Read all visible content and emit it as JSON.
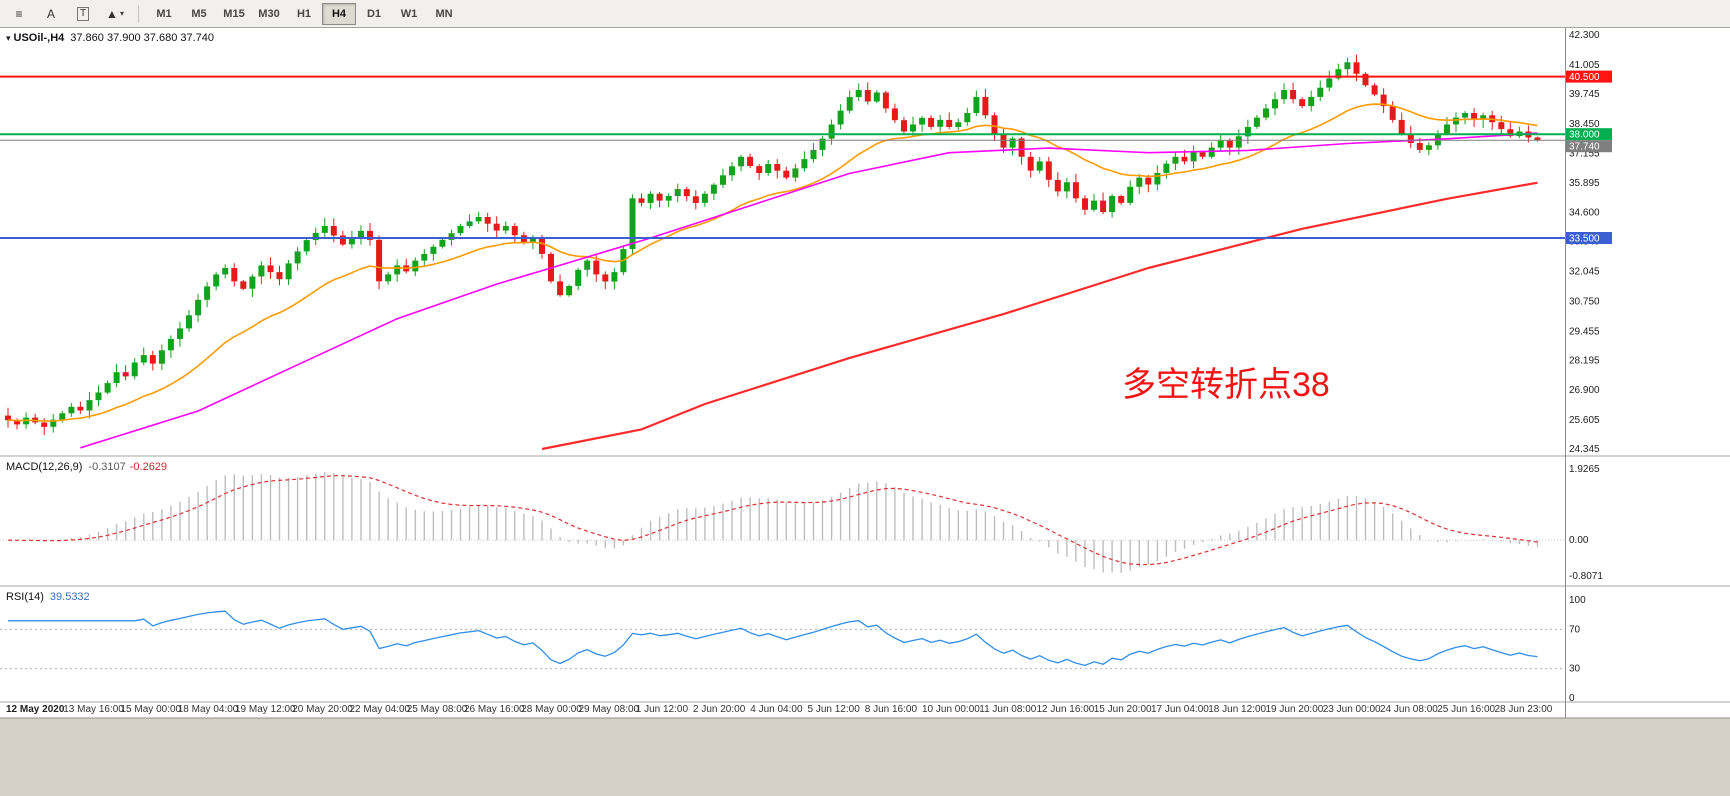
{
  "toolbar": {
    "tools": [
      {
        "id": "objects-list",
        "glyph": "≡"
      },
      {
        "id": "text-label",
        "glyph": "A"
      },
      {
        "id": "text",
        "glyph": "T"
      },
      {
        "id": "shapes",
        "glyph": "▲"
      }
    ],
    "dropdown_glyph": "▾",
    "timeframes": [
      "M1",
      "M5",
      "M15",
      "M30",
      "H1",
      "H4",
      "D1",
      "W1",
      "MN"
    ],
    "active_timeframe": "H4"
  },
  "chart": {
    "title": "USOil-,H4",
    "ohlc": "37.860 37.900 37.680 37.740",
    "annotation": {
      "text": "多空转折点38",
      "color": "#f21414"
    },
    "price_axis_labels": [
      "42.300",
      "41.005",
      "39.745",
      "38.450",
      "37.155",
      "35.895",
      "34.600",
      "33.340",
      "32.045",
      "30.750",
      "29.455",
      "28.195",
      "26.900",
      "25.605",
      "24.345"
    ],
    "hlines": [
      {
        "price": 40.5,
        "label": "40.500",
        "color": "#ff1414"
      },
      {
        "price": 38.0,
        "label": "38.000",
        "color": "#00b050"
      },
      {
        "price": 33.5,
        "label": "33.500",
        "color": "#3a5fd0"
      }
    ],
    "current_price": {
      "price": 37.74,
      "label": "37.740",
      "color": "#7f7f7f"
    },
    "time_axis": [
      "12 May 2020",
      "13 May 16:00",
      "15 May 00:00",
      "18 May 04:00",
      "19 May 12:00",
      "20 May 20:00",
      "22 May 04:00",
      "25 May 08:00",
      "26 May 16:00",
      "28 May 00:00",
      "29 May 08:00",
      "1 Jun 12:00",
      "2 Jun 20:00",
      "4 Jun 04:00",
      "5 Jun 12:00",
      "8 Jun 16:00",
      "10 Jun 00:00",
      "11 Jun 08:00",
      "12 Jun 16:00",
      "15 Jun 20:00",
      "17 Jun 04:00",
      "18 Jun 12:00",
      "19 Jun 20:00",
      "23 Jun 00:00",
      "24 Jun 08:00",
      "25 Jun 16:00",
      "28 Jun 23:00"
    ]
  },
  "chart_data": {
    "type": "candlestick",
    "symbol": "USOil",
    "timeframe": "H4",
    "title": "USOil-,H4",
    "ylim": [
      24.22,
      42.52
    ],
    "first_open": 25.8,
    "last_ohlc": [
      37.86,
      37.9,
      37.68,
      37.74
    ],
    "closes": [
      25.6,
      25.42,
      25.71,
      25.5,
      25.31,
      25.62,
      25.9,
      26.18,
      26.02,
      26.47,
      26.8,
      27.21,
      27.68,
      27.5,
      28.1,
      28.42,
      28.05,
      28.63,
      29.12,
      29.58,
      30.15,
      30.82,
      31.4,
      31.92,
      32.2,
      31.62,
      31.3,
      31.83,
      32.31,
      32.02,
      31.71,
      32.4,
      32.92,
      33.41,
      33.72,
      34.02,
      33.61,
      33.22,
      33.52,
      33.81,
      33.42,
      31.62,
      31.92,
      32.31,
      32.05,
      32.52,
      32.81,
      33.12,
      33.42,
      33.71,
      34.02,
      34.22,
      34.41,
      34.12,
      33.82,
      34.02,
      33.62,
      33.31,
      33.52,
      32.81,
      31.62,
      31.02,
      31.42,
      32.12,
      32.52,
      31.92,
      31.61,
      32.02,
      33.02,
      35.22,
      35.02,
      35.42,
      35.12,
      35.32,
      35.62,
      35.31,
      35.02,
      35.42,
      35.81,
      36.22,
      36.61,
      37.02,
      36.62,
      36.32,
      36.71,
      36.42,
      36.12,
      36.52,
      36.92,
      37.32,
      37.81,
      38.42,
      39.02,
      39.61,
      39.92,
      39.42,
      39.81,
      39.12,
      38.61,
      38.12,
      38.42,
      38.71,
      38.32,
      38.62,
      38.31,
      38.52,
      38.92,
      39.62,
      38.82,
      38.02,
      37.42,
      37.82,
      37.02,
      36.42,
      36.82,
      36.02,
      35.52,
      35.92,
      35.22,
      34.72,
      35.12,
      34.62,
      35.32,
      35.02,
      35.72,
      36.12,
      35.82,
      36.32,
      36.72,
      37.02,
      36.82,
      37.22,
      37.02,
      37.42,
      37.72,
      37.42,
      37.91,
      38.32,
      38.72,
      39.12,
      39.52,
      39.92,
      39.52,
      39.22,
      39.62,
      40.02,
      40.42,
      40.82,
      41.12,
      40.62,
      40.12,
      39.72,
      39.22,
      38.62,
      38.02,
      37.62,
      37.32,
      37.52,
      38.02,
      38.42,
      38.72,
      38.92,
      38.62,
      38.82,
      38.52,
      38.22,
      37.92,
      38.12,
      37.86,
      37.74
    ],
    "bull_color": "#12a31c",
    "bear_color": "#e51b1b",
    "overlays": {
      "ema_fast": {
        "period": 20,
        "color": "#ff9b00"
      },
      "ma_mid": {
        "color": "#ff00ff",
        "points": [
          [
            8,
            24.4
          ],
          [
            21,
            26.0
          ],
          [
            32,
            28.0
          ],
          [
            43,
            30.0
          ],
          [
            54,
            31.5
          ],
          [
            60,
            32.2
          ],
          [
            71,
            33.5
          ],
          [
            82,
            34.9
          ],
          [
            93,
            36.3
          ],
          [
            104,
            37.2
          ],
          [
            115,
            37.4
          ],
          [
            126,
            37.2
          ],
          [
            137,
            37.3
          ],
          [
            148,
            37.6
          ],
          [
            159,
            37.8
          ],
          [
            169,
            38.05
          ]
        ]
      },
      "ma_slow": {
        "color": "#ff2a2a",
        "points": [
          [
            59,
            24.35
          ],
          [
            70,
            25.2
          ],
          [
            77,
            26.3
          ],
          [
            93,
            28.3
          ],
          [
            110,
            30.2
          ],
          [
            126,
            32.2
          ],
          [
            143,
            33.9
          ],
          [
            159,
            35.2
          ],
          [
            169,
            35.9
          ]
        ]
      }
    }
  },
  "macd": {
    "name": "MACD(12,26,9)",
    "value_main": "-0.3107",
    "value_signal": "-0.2629",
    "params": {
      "fast": 12,
      "slow": 26,
      "signal": 9
    },
    "axis_labels": [
      "1.9265",
      "0.00",
      "-0.8071"
    ],
    "hist_color": "#bdbdbd",
    "signal_color": "#e03030"
  },
  "rsi": {
    "name": "RSI(14)",
    "value": "39.5332",
    "period": 14,
    "levels": [
      70,
      30
    ],
    "axis_labels": [
      {
        "v": 100,
        "t": "100"
      },
      {
        "v": 70,
        "t": "70"
      },
      {
        "v": 30,
        "t": "30"
      },
      {
        "v": 0,
        "t": "0"
      }
    ],
    "color": "#2f8fe8"
  }
}
